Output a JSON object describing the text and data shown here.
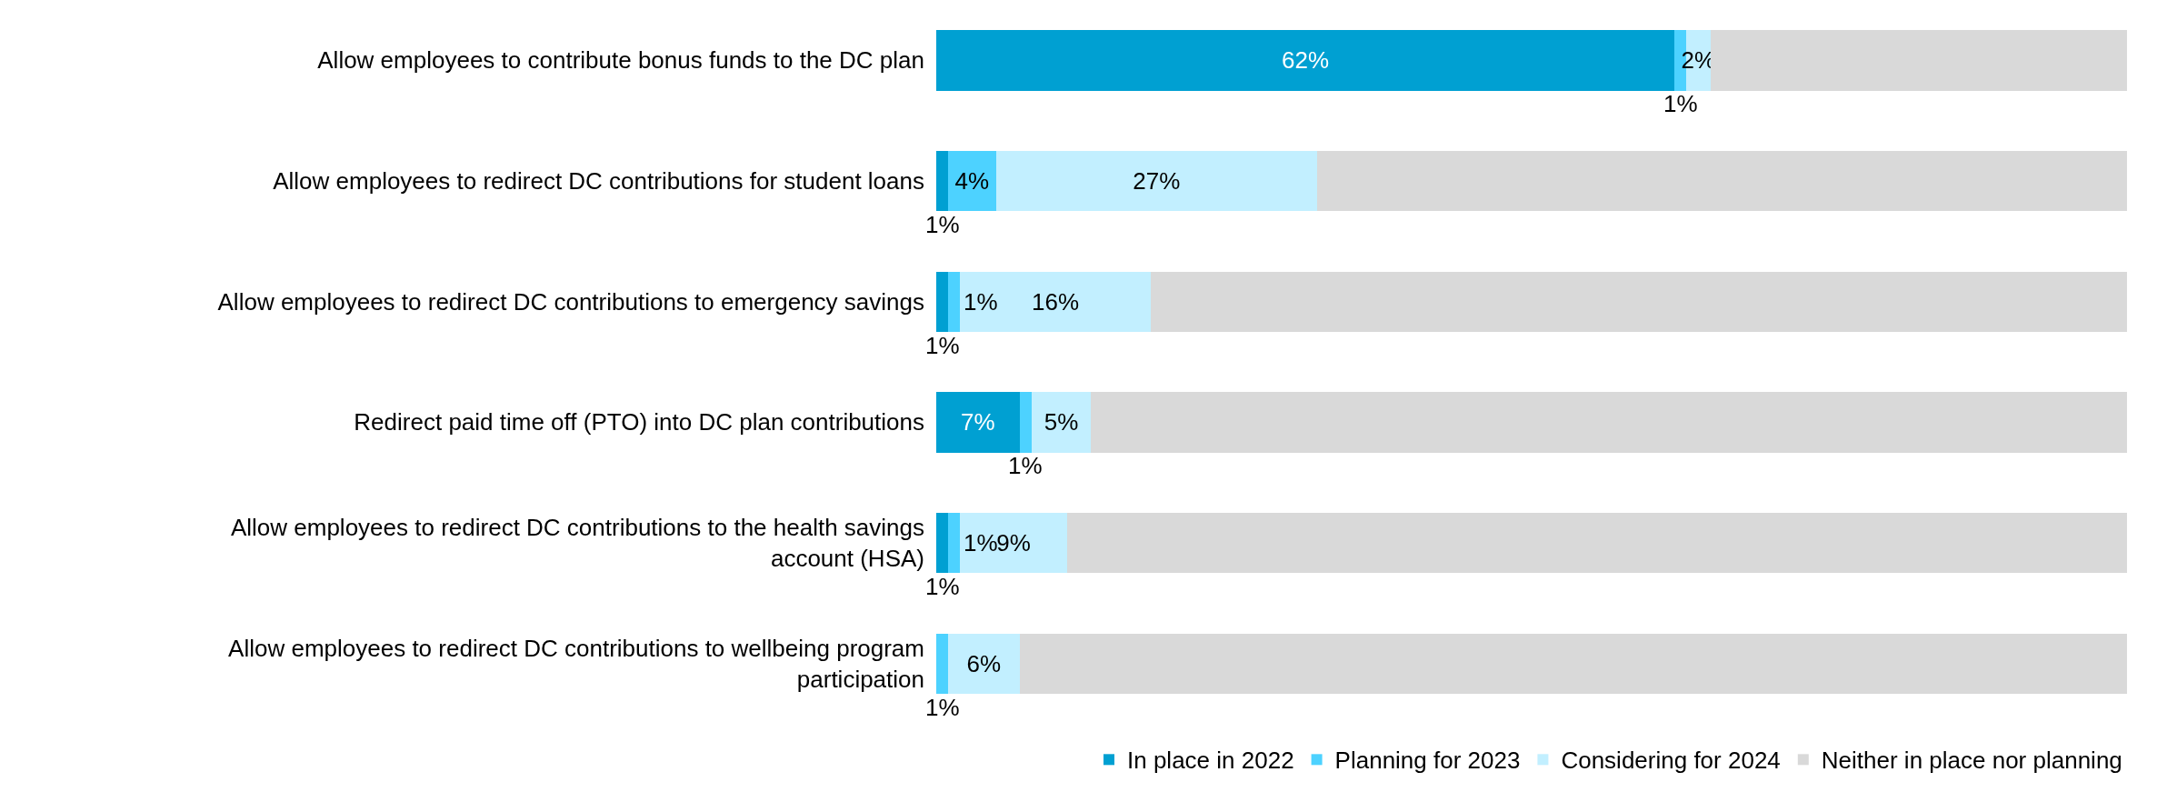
{
  "chart_data": {
    "type": "bar",
    "orientation": "horizontal",
    "stacked": true,
    "legend": "bottom right",
    "tick_labels": "y",
    "xlim": [
      0,
      100
    ],
    "categories": [
      "Allow employees to contribute bonus funds to the DC plan",
      "Allow employees to redirect DC contributions for student loans",
      "Allow employees to redirect DC contributions to emergency savings",
      "Redirect paid time off (PTO) into DC plan contributions",
      "Allow employees to redirect DC contributions to the health savings account (HSA)",
      "Allow employees to redirect DC contributions to wellbeing program participation"
    ],
    "series": [
      {
        "name": "In place in 2022",
        "color": "#00a0d2",
        "values": [
          62,
          1,
          1,
          7,
          1,
          0
        ],
        "value_labels": [
          "62%",
          "1%",
          "1%",
          "7%",
          "1%",
          null
        ]
      },
      {
        "name": "Planning for 2023",
        "color": "#4dd2ff",
        "values": [
          1,
          4,
          1,
          1,
          1,
          1
        ],
        "value_labels": [
          "1%",
          "4%",
          "1%",
          "1%",
          "1%",
          "1%"
        ]
      },
      {
        "name": "Considering for 2024",
        "color": "#c2efff",
        "values": [
          2,
          27,
          16,
          5,
          9,
          6
        ],
        "value_labels": [
          "2%",
          "27%",
          "16%",
          "5%",
          "9%",
          "6%"
        ]
      },
      {
        "name": "Neither in place nor planning",
        "color": "#d9d9d9",
        "values": [
          35,
          68,
          82,
          87,
          89,
          93
        ],
        "value_labels": [
          null,
          null,
          null,
          null,
          null,
          null
        ]
      }
    ]
  }
}
